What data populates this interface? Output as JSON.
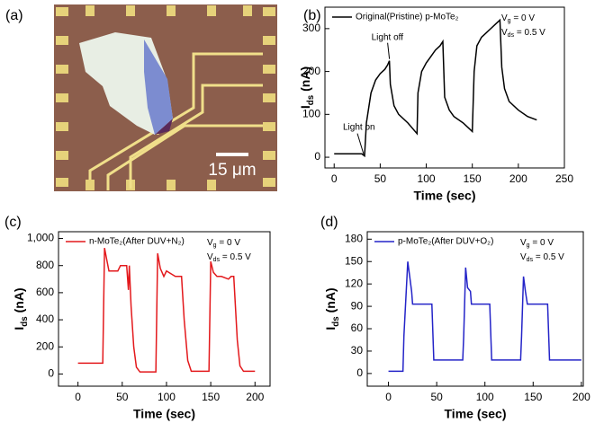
{
  "panel_a": {
    "label": "(a)",
    "scale_bar": "15 μm"
  },
  "chart_data": [
    {
      "type": "line",
      "label": "(b)",
      "xlabel": "Time (sec)",
      "ylabel": [
        {
          "text": "I"
        },
        {
          "sub": "ds"
        },
        {
          "text": " (nA)"
        }
      ],
      "xlim": [
        -10,
        250
      ],
      "xticks": [
        0,
        50,
        100,
        150,
        200,
        250
      ],
      "ylim": [
        -25,
        350
      ],
      "yticks": [
        0,
        100,
        200,
        300
      ],
      "notes": [
        [
          {
            "text": "V"
          },
          {
            "sub": "g"
          },
          {
            "text": "  = 0 V"
          }
        ],
        [
          {
            "text": "V"
          },
          {
            "sub": "ds"
          },
          {
            "text": " = 0.5 V"
          }
        ]
      ],
      "annotations": [
        "Light on",
        "Light off"
      ],
      "series": [
        {
          "name": "Original(Pristine) p-MoTe₂",
          "color": "#000000",
          "x": [
            0,
            30,
            33,
            35,
            40,
            45,
            50,
            55,
            58,
            60,
            61,
            65,
            70,
            80,
            90,
            91,
            95,
            100,
            105,
            110,
            115,
            118,
            120,
            125,
            130,
            140,
            150,
            152,
            155,
            160,
            165,
            170,
            175,
            180,
            182,
            185,
            190,
            200,
            210,
            220
          ],
          "values": [
            8,
            8,
            3,
            80,
            150,
            180,
            195,
            205,
            215,
            225,
            170,
            120,
            100,
            80,
            55,
            150,
            200,
            220,
            235,
            250,
            260,
            270,
            140,
            110,
            95,
            80,
            60,
            200,
            260,
            280,
            290,
            300,
            310,
            320,
            210,
            160,
            130,
            110,
            95,
            87
          ]
        }
      ]
    },
    {
      "type": "line",
      "label": "(c)",
      "xlabel": "Time (sec)",
      "ylabel": [
        {
          "text": "I"
        },
        {
          "sub": "ds"
        },
        {
          "text": " (nA)"
        }
      ],
      "xlim": [
        -22,
        217
      ],
      "xticks": [
        0,
        50,
        100,
        150,
        200
      ],
      "ylim": [
        -90,
        1050
      ],
      "yticks": [
        0,
        200,
        400,
        600,
        800,
        {
          "value": 1000,
          "label": "1,000"
        }
      ],
      "notes": [
        [
          {
            "text": "V"
          },
          {
            "sub": "g"
          },
          {
            "text": "  = 0 V"
          }
        ],
        [
          {
            "text": "V"
          },
          {
            "sub": "ds"
          },
          {
            "text": " = 0.5 V"
          }
        ]
      ],
      "series": [
        {
          "name": "n-MoTe₂(After DUV+N₂)",
          "color": "#e3191c",
          "x": [
            0,
            28,
            30,
            32,
            35,
            45,
            48,
            55,
            57,
            58,
            60,
            63,
            66,
            70,
            88,
            90,
            93,
            97,
            100,
            105,
            110,
            115,
            117,
            120,
            124,
            128,
            148,
            150,
            153,
            157,
            162,
            170,
            173,
            176,
            180,
            183,
            187,
            200
          ],
          "values": [
            80,
            80,
            930,
            860,
            760,
            760,
            800,
            800,
            620,
            800,
            500,
            200,
            50,
            15,
            15,
            890,
            780,
            720,
            760,
            740,
            720,
            720,
            720,
            400,
            100,
            20,
            20,
            830,
            750,
            720,
            720,
            700,
            720,
            720,
            250,
            60,
            20,
            20
          ]
        }
      ]
    },
    {
      "type": "line",
      "label": "(d)",
      "xlabel": "Time (sec)",
      "ylabel": [
        {
          "text": "I"
        },
        {
          "sub": "ds"
        },
        {
          "text": " (nA)"
        }
      ],
      "xlim": [
        -22,
        202
      ],
      "xticks": [
        0,
        50,
        100,
        150,
        200
      ],
      "ylim": [
        -17,
        190
      ],
      "yticks": [
        0,
        30,
        60,
        90,
        120,
        150,
        180
      ],
      "notes": [
        [
          {
            "text": "V"
          },
          {
            "sub": "g"
          },
          {
            "text": "  = 0 V"
          }
        ],
        [
          {
            "text": "V"
          },
          {
            "sub": "ds"
          },
          {
            "text": " = 0.5 V"
          }
        ]
      ],
      "series": [
        {
          "name": "p-MoTe₂(After DUV+O₂)",
          "color": "#2424c8",
          "x": [
            0,
            15,
            16,
            20,
            24,
            25,
            45,
            47,
            77,
            78,
            80,
            82,
            85,
            86,
            105,
            107,
            137,
            138,
            140,
            142,
            144,
            165,
            167,
            200
          ],
          "values": [
            3,
            3,
            50,
            150,
            110,
            93,
            93,
            18,
            18,
            50,
            142,
            115,
            110,
            93,
            93,
            18,
            18,
            50,
            130,
            110,
            93,
            93,
            18,
            18
          ]
        }
      ]
    }
  ]
}
